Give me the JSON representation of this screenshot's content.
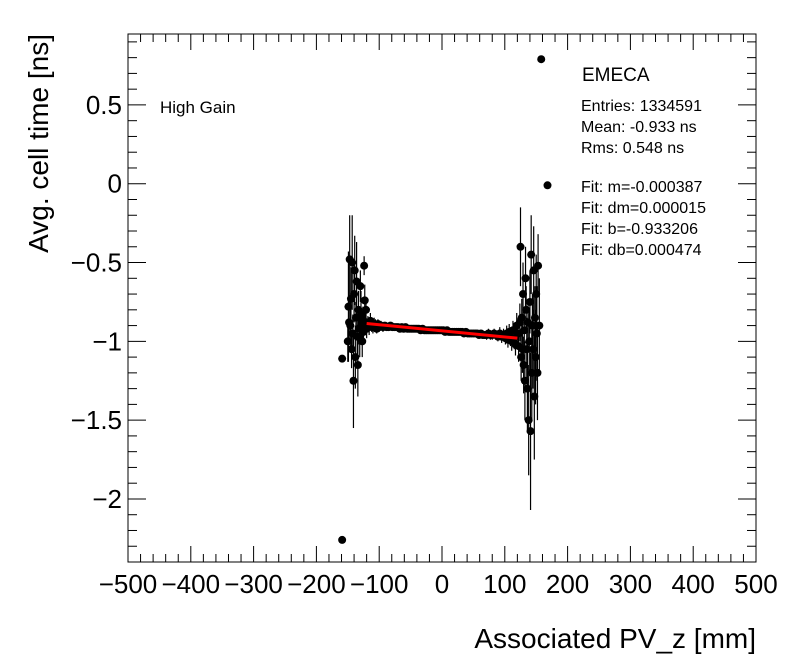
{
  "chart_data": {
    "type": "scatter",
    "title": "EMECA",
    "xlabel": "Associated PV_z [mm]",
    "ylabel": "Avg. cell time [ns]",
    "xlim": [
      -500,
      500
    ],
    "ylim": [
      -2.4,
      0.95
    ],
    "x_ticks": [
      -500,
      -400,
      -300,
      -200,
      -100,
      0,
      100,
      200,
      300,
      400,
      500
    ],
    "x_tick_labels": [
      "−500",
      "−400",
      "−300",
      "−200",
      "−100",
      "0",
      "100",
      "200",
      "300",
      "400",
      "500"
    ],
    "y_ticks": [
      0.5,
      0,
      -0.5,
      -1,
      -1.5,
      -2
    ],
    "y_tick_labels": [
      "0.5",
      "0",
      "−0.5",
      "−1",
      "−1.5",
      "−2"
    ],
    "annotation": "High Gain",
    "stats": {
      "entries": "Entries: 1334591",
      "mean": "Mean: -0.933 ns",
      "rms": "Rms: 0.548 ns",
      "fit_m": "Fit: m=-0.000387",
      "fit_dm": "Fit: dm=0.000015",
      "fit_b": "Fit: b=-0.933206",
      "fit_db": "Fit: db=0.000474"
    },
    "fit": {
      "slope": -0.000387,
      "intercept": -0.933206,
      "x_range": [
        -120,
        120
      ],
      "color": "#ff0000"
    },
    "marker_color": "#000000",
    "series": [
      {
        "points": [
          [
            -159,
            -1.11,
            0.0
          ],
          [
            -159,
            -2.26,
            0.0
          ],
          [
            -150,
            -1.0,
            0.13
          ],
          [
            -149,
            -0.78,
            0.35
          ],
          [
            -148,
            -0.88,
            0.1
          ],
          [
            -147,
            -0.48,
            0.28
          ],
          [
            -146,
            -0.9,
            0.15
          ],
          [
            -145,
            -0.73,
            0.2
          ],
          [
            -144,
            -1.05,
            0.12
          ],
          [
            -143,
            -0.5,
            0.3
          ],
          [
            -142,
            -0.95,
            0.12
          ],
          [
            -141,
            -1.25,
            0.3
          ],
          [
            -140,
            -0.7,
            0.18
          ],
          [
            -139,
            -0.55,
            0.22
          ],
          [
            -138,
            -1.1,
            0.2
          ],
          [
            -137,
            -0.85,
            0.1
          ],
          [
            -136,
            -0.62,
            0.25
          ],
          [
            -135,
            -0.97,
            0.12
          ],
          [
            -134,
            -1.15,
            0.2
          ],
          [
            -133,
            -0.8,
            0.12
          ],
          [
            -132,
            -0.92,
            0.1
          ],
          [
            -131,
            -0.98,
            0.12
          ],
          [
            -130,
            -0.65,
            0.1
          ],
          [
            -129,
            -0.83,
            0.15
          ],
          [
            -128,
            -0.9,
            0.08
          ],
          [
            -127,
            -1.0,
            0.1
          ],
          [
            -126,
            -0.86,
            0.08
          ],
          [
            -125,
            -0.94,
            0.08
          ],
          [
            -124,
            -0.52,
            0.06
          ],
          [
            -123,
            -0.74,
            0.1
          ],
          [
            -122,
            -0.88,
            0.06
          ],
          [
            -121,
            -0.8,
            0.06
          ],
          [
            -120,
            -0.92,
            0.06
          ],
          [
            -118,
            -0.89,
            0.05
          ],
          [
            -116,
            -0.91,
            0.05
          ],
          [
            -114,
            -0.87,
            0.05
          ],
          [
            -112,
            -0.9,
            0.04
          ],
          [
            -110,
            -0.91,
            0.04
          ],
          [
            -108,
            -0.89,
            0.04
          ],
          [
            -106,
            -0.9,
            0.04
          ],
          [
            -104,
            -0.92,
            0.03
          ],
          [
            -102,
            -0.89,
            0.03
          ],
          [
            -100,
            -0.91,
            0.03
          ],
          [
            -97,
            -0.9,
            0.03
          ],
          [
            -94,
            -0.91,
            0.03
          ],
          [
            -91,
            -0.9,
            0.02
          ],
          [
            -88,
            -0.91,
            0.02
          ],
          [
            -85,
            -0.91,
            0.02
          ],
          [
            -82,
            -0.9,
            0.02
          ],
          [
            -79,
            -0.91,
            0.02
          ],
          [
            -76,
            -0.91,
            0.02
          ],
          [
            -73,
            -0.91,
            0.02
          ],
          [
            -70,
            -0.91,
            0.02
          ],
          [
            -67,
            -0.92,
            0.02
          ],
          [
            -64,
            -0.91,
            0.02
          ],
          [
            -61,
            -0.92,
            0.02
          ],
          [
            -58,
            -0.91,
            0.02
          ],
          [
            -55,
            -0.92,
            0.02
          ],
          [
            -52,
            -0.92,
            0.02
          ],
          [
            -49,
            -0.92,
            0.02
          ],
          [
            -46,
            -0.92,
            0.02
          ],
          [
            -43,
            -0.92,
            0.02
          ],
          [
            -40,
            -0.92,
            0.02
          ],
          [
            -37,
            -0.92,
            0.02
          ],
          [
            -34,
            -0.93,
            0.02
          ],
          [
            -31,
            -0.92,
            0.02
          ],
          [
            -28,
            -0.93,
            0.02
          ],
          [
            -25,
            -0.93,
            0.02
          ],
          [
            -22,
            -0.93,
            0.02
          ],
          [
            -19,
            -0.93,
            0.02
          ],
          [
            -16,
            -0.93,
            0.02
          ],
          [
            -13,
            -0.93,
            0.02
          ],
          [
            -10,
            -0.93,
            0.02
          ],
          [
            -7,
            -0.93,
            0.02
          ],
          [
            -4,
            -0.93,
            0.02
          ],
          [
            -1,
            -0.93,
            0.02
          ],
          [
            2,
            -0.93,
            0.02
          ],
          [
            5,
            -0.94,
            0.02
          ],
          [
            8,
            -0.93,
            0.02
          ],
          [
            11,
            -0.94,
            0.02
          ],
          [
            14,
            -0.94,
            0.02
          ],
          [
            17,
            -0.94,
            0.02
          ],
          [
            20,
            -0.94,
            0.02
          ],
          [
            23,
            -0.94,
            0.02
          ],
          [
            26,
            -0.94,
            0.02
          ],
          [
            29,
            -0.94,
            0.02
          ],
          [
            32,
            -0.94,
            0.02
          ],
          [
            35,
            -0.95,
            0.02
          ],
          [
            38,
            -0.94,
            0.02
          ],
          [
            41,
            -0.95,
            0.02
          ],
          [
            44,
            -0.95,
            0.02
          ],
          [
            47,
            -0.95,
            0.02
          ],
          [
            50,
            -0.95,
            0.02
          ],
          [
            53,
            -0.95,
            0.02
          ],
          [
            56,
            -0.95,
            0.02
          ],
          [
            59,
            -0.96,
            0.02
          ],
          [
            62,
            -0.95,
            0.02
          ],
          [
            65,
            -0.96,
            0.02
          ],
          [
            68,
            -0.96,
            0.02
          ],
          [
            71,
            -0.96,
            0.03
          ],
          [
            74,
            -0.95,
            0.03
          ],
          [
            77,
            -0.96,
            0.03
          ],
          [
            80,
            -0.96,
            0.03
          ],
          [
            83,
            -0.95,
            0.03
          ],
          [
            86,
            -0.96,
            0.03
          ],
          [
            89,
            -0.97,
            0.03
          ],
          [
            92,
            -0.95,
            0.04
          ],
          [
            95,
            -0.97,
            0.04
          ],
          [
            98,
            -0.96,
            0.04
          ],
          [
            101,
            -0.98,
            0.04
          ],
          [
            103,
            -0.95,
            0.05
          ],
          [
            105,
            -0.99,
            0.05
          ],
          [
            107,
            -0.94,
            0.05
          ],
          [
            109,
            -0.97,
            0.06
          ],
          [
            111,
            -1.0,
            0.06
          ],
          [
            113,
            -0.93,
            0.06
          ],
          [
            115,
            -0.98,
            0.07
          ],
          [
            117,
            -1.02,
            0.07
          ],
          [
            119,
            -0.9,
            0.08
          ],
          [
            121,
            -0.95,
            0.1
          ],
          [
            122,
            -1.03,
            0.1
          ],
          [
            124,
            -0.88,
            0.12
          ],
          [
            125,
            -0.4,
            0.25
          ],
          [
            126,
            -1.1,
            0.15
          ],
          [
            127,
            -0.85,
            0.12
          ],
          [
            128,
            -1.05,
            0.15
          ],
          [
            129,
            -0.7,
            0.2
          ],
          [
            130,
            -1.15,
            0.18
          ],
          [
            131,
            -0.93,
            0.12
          ],
          [
            132,
            -1.25,
            0.25
          ],
          [
            133,
            -0.6,
            0.2
          ],
          [
            134,
            -0.8,
            0.15
          ],
          [
            135,
            -1.05,
            0.2
          ],
          [
            136,
            -1.3,
            0.28
          ],
          [
            137,
            -0.88,
            0.15
          ],
          [
            138,
            -1.5,
            0.35
          ],
          [
            139,
            -1.0,
            0.2
          ],
          [
            140,
            -0.75,
            0.2
          ],
          [
            141,
            -1.57,
            0.5
          ],
          [
            142,
            -0.45,
            0.25
          ],
          [
            143,
            -1.2,
            0.3
          ],
          [
            144,
            -0.9,
            0.2
          ],
          [
            145,
            -1.05,
            0.25
          ],
          [
            146,
            -0.55,
            0.28
          ],
          [
            147,
            -1.35,
            0.4
          ],
          [
            148,
            -0.85,
            0.2
          ],
          [
            149,
            -1.1,
            0.3
          ],
          [
            150,
            -0.7,
            0.25
          ],
          [
            151,
            -0.95,
            0.3
          ],
          [
            152,
            -1.2,
            0.3
          ],
          [
            153,
            -0.52,
            0.2
          ],
          [
            155,
            -0.9,
            0.3
          ],
          [
            158,
            0.79,
            0.0
          ],
          [
            168,
            -0.01,
            0.0
          ]
        ]
      }
    ]
  }
}
